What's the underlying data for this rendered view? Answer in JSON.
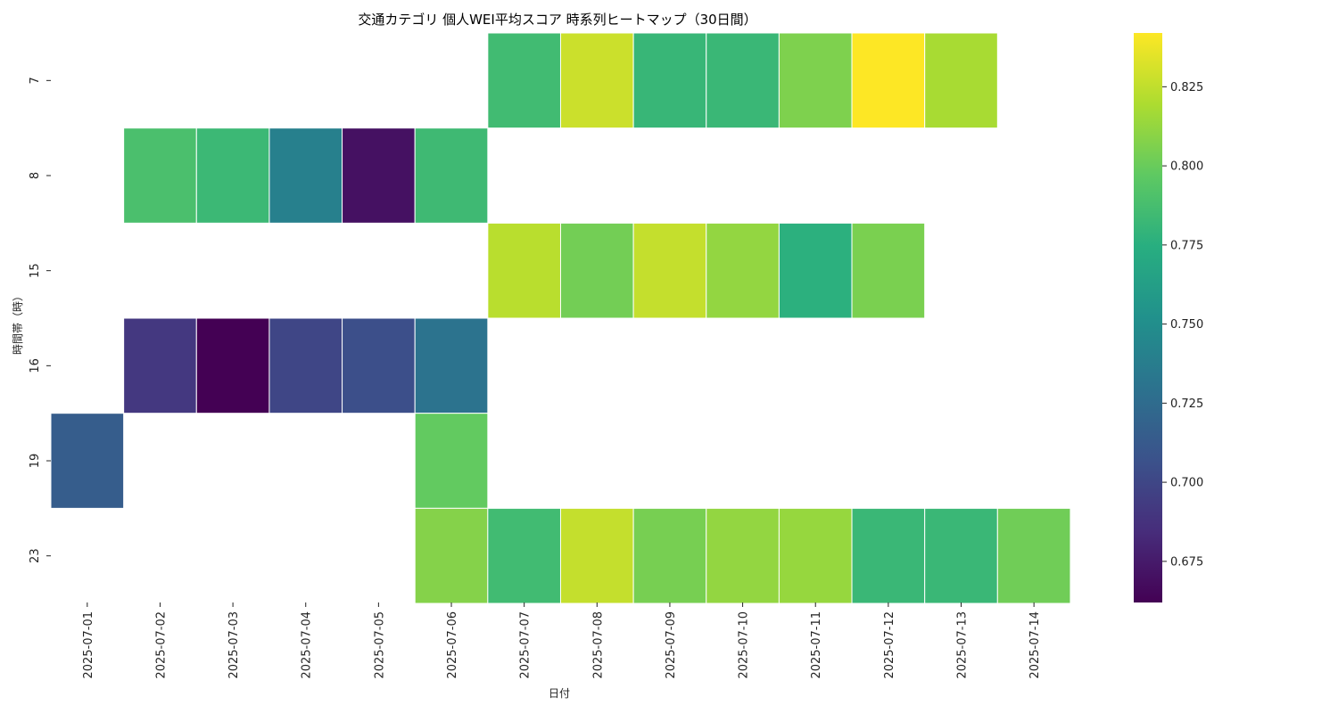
{
  "chart_data": {
    "type": "heatmap",
    "title": "交通カテゴリ 個人WEI平均スコア 時系列ヒートマップ（30日間）",
    "xlabel": "日付",
    "ylabel": "時間帯（時）",
    "x": [
      "2025-07-01",
      "2025-07-02",
      "2025-07-03",
      "2025-07-04",
      "2025-07-05",
      "2025-07-06",
      "2025-07-07",
      "2025-07-08",
      "2025-07-09",
      "2025-07-10",
      "2025-07-11",
      "2025-07-12",
      "2025-07-13",
      "2025-07-14"
    ],
    "y": [
      "7",
      "8",
      "15",
      "16",
      "19",
      "23"
    ],
    "colormap": "viridis",
    "color_range": [
      0.662,
      0.842
    ],
    "colorbar_ticks": [
      "0.675",
      "0.700",
      "0.725",
      "0.750",
      "0.775",
      "0.800",
      "0.825"
    ],
    "values": [
      [
        null,
        null,
        null,
        null,
        null,
        null,
        0.785,
        0.828,
        0.781,
        0.782,
        0.806,
        0.842,
        0.818,
        null
      ],
      [
        null,
        0.789,
        0.783,
        0.74,
        0.67,
        0.784,
        null,
        null,
        null,
        null,
        null,
        null,
        null,
        null
      ],
      [
        null,
        null,
        null,
        null,
        null,
        null,
        0.823,
        0.803,
        0.826,
        0.812,
        0.776,
        0.805,
        null,
        null
      ],
      [
        null,
        0.691,
        0.662,
        0.7,
        0.705,
        0.73,
        null,
        null,
        null,
        null,
        null,
        null,
        null,
        null
      ],
      [
        0.715,
        null,
        null,
        null,
        null,
        0.798,
        null,
        null,
        null,
        null,
        null,
        null,
        null,
        null
      ],
      [
        null,
        null,
        null,
        null,
        null,
        0.808,
        0.785,
        0.826,
        0.804,
        0.812,
        0.813,
        0.782,
        0.782,
        0.802
      ]
    ]
  }
}
